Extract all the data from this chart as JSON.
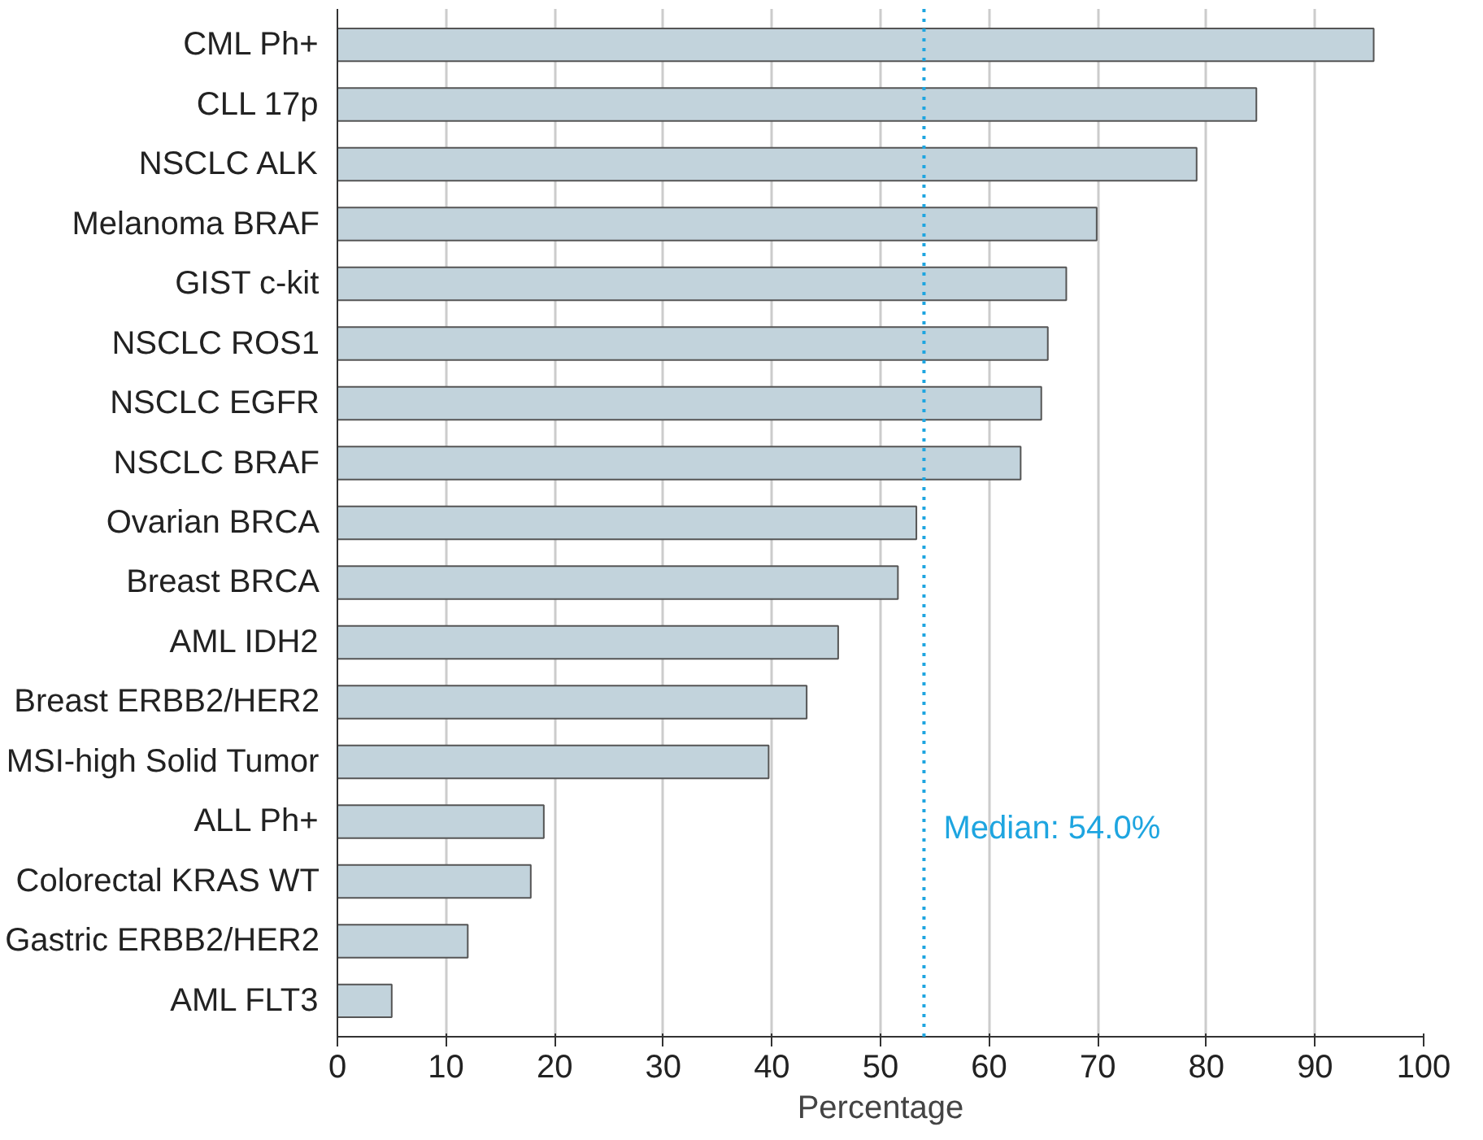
{
  "chart_data": {
    "type": "bar",
    "orientation": "horizontal",
    "xlabel": "Percentage",
    "categories": [
      "CML Ph+",
      "CLL 17p",
      "NSCLC ALK",
      "Melanoma BRAF",
      "GIST c-kit",
      "NSCLC ROS1",
      "NSCLC EGFR",
      "NSCLC BRAF",
      "Ovarian BRCA",
      "Breast BRCA",
      "AML IDH2",
      "Breast ERBB2/HER2",
      "MSI-high Solid Tumor",
      "ALL Ph+",
      "Colorectal KRAS WT",
      "Gastric ERBB2/HER2",
      "AML FLT3"
    ],
    "values": [
      95.4,
      84.6,
      79.1,
      69.9,
      67.1,
      65.4,
      64.8,
      62.9,
      53.3,
      51.6,
      46.1,
      43.2,
      39.7,
      19.0,
      17.8,
      12.0,
      5.0
    ],
    "color": "#c2d3dc",
    "xlim": [
      0,
      100
    ],
    "xticks": [
      0,
      10,
      20,
      30,
      40,
      50,
      60,
      70,
      80,
      90,
      100
    ],
    "grid": "x",
    "ref_lines": [
      {
        "axis": "x",
        "value": 54.0,
        "label": "Median: 54.0%",
        "color": "#1ea5e0",
        "line_style": "dotted"
      }
    ]
  }
}
